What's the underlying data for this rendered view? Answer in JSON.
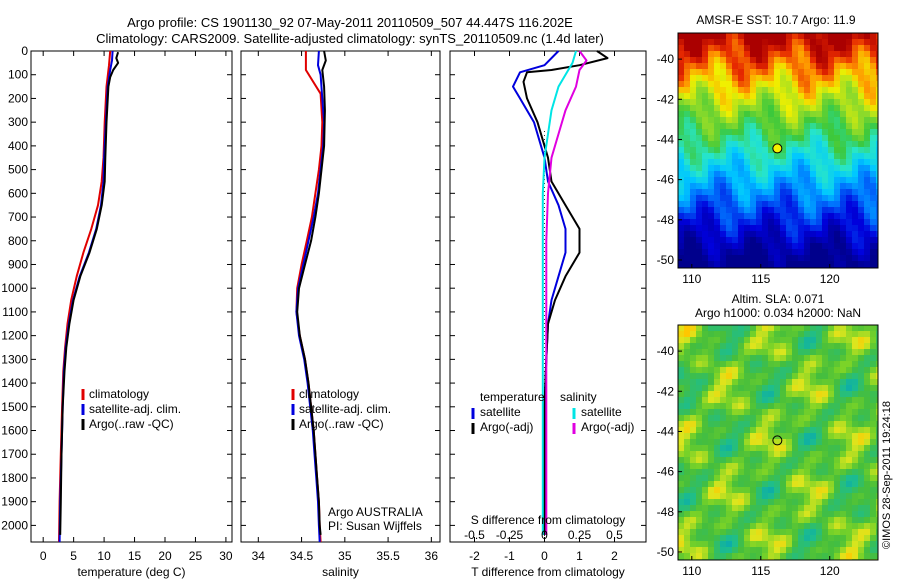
{
  "header": {
    "title_line1": "Argo profile: CS 1901130_92 07-May-2011 20110509_507 44.447S 116.202E",
    "title_line2": "Climatology: CARS2009. Satellite-adjusted climatology: synTS_20110509.nc (1.4d later)"
  },
  "colors": {
    "climatology": "#e00000",
    "satellite": "#0000dd",
    "argo": "#000000",
    "salinity_satellite": "#00e5e5",
    "salinity_argo": "#e000e0"
  },
  "chart_data": [
    {
      "type": "line",
      "panel": "temperature",
      "xlabel": "temperature (deg C)",
      "xlim": [
        -2,
        31
      ],
      "ylim": [
        2070,
        0
      ],
      "xticks": [
        0,
        5,
        10,
        15,
        20,
        25,
        30
      ],
      "xtick_labels": [
        "0",
        "5",
        "10",
        "15",
        "20",
        "25",
        "30"
      ],
      "yticks": [
        0,
        100,
        200,
        300,
        400,
        500,
        600,
        700,
        800,
        900,
        1000,
        1100,
        1200,
        1300,
        1400,
        1500,
        1600,
        1700,
        1800,
        1900,
        2000
      ],
      "ytick_labels": [
        "0",
        "100",
        "200",
        "300",
        "400",
        "500",
        "600",
        "700",
        "800",
        "900",
        "1000",
        "1100",
        "1200",
        "1300",
        "1400",
        "1500",
        "1600",
        "1700",
        "1800",
        "1900",
        "2000"
      ],
      "legend": [
        "climatology",
        "satellite-adj. clim.",
        "Argo(..raw -QC)"
      ],
      "series": [
        {
          "name": "climatology",
          "color": "#e00000",
          "points": [
            [
              11.0,
              0
            ],
            [
              10.8,
              60
            ],
            [
              10.4,
              150
            ],
            [
              10.1,
              300
            ],
            [
              9.9,
              450
            ],
            [
              9.6,
              550
            ],
            [
              9.0,
              650
            ],
            [
              7.9,
              750
            ],
            [
              6.6,
              850
            ],
            [
              5.5,
              950
            ],
            [
              4.6,
              1050
            ],
            [
              4.0,
              1150
            ],
            [
              3.6,
              1250
            ],
            [
              3.3,
              1350
            ],
            [
              3.1,
              1500
            ],
            [
              2.9,
              1700
            ],
            [
              2.7,
              1900
            ],
            [
              2.6,
              2070
            ]
          ]
        },
        {
          "name": "satellite-adj. clim.",
          "color": "#0000dd",
          "points": [
            [
              11.4,
              0
            ],
            [
              11.3,
              40
            ],
            [
              11.0,
              80
            ],
            [
              10.6,
              150
            ],
            [
              10.3,
              300
            ],
            [
              10.0,
              450
            ],
            [
              9.9,
              550
            ],
            [
              9.5,
              650
            ],
            [
              8.7,
              750
            ],
            [
              7.5,
              850
            ],
            [
              6.0,
              950
            ],
            [
              4.9,
              1050
            ],
            [
              4.2,
              1150
            ],
            [
              3.7,
              1250
            ],
            [
              3.4,
              1350
            ],
            [
              3.2,
              1500
            ],
            [
              3.0,
              1700
            ],
            [
              2.8,
              1900
            ],
            [
              2.7,
              2070
            ]
          ]
        },
        {
          "name": "Argo(..raw -QC)",
          "color": "#000000",
          "points": [
            [
              12.3,
              5
            ],
            [
              12.0,
              30
            ],
            [
              12.3,
              50
            ],
            [
              11.5,
              80
            ],
            [
              11.0,
              110
            ],
            [
              10.7,
              150
            ],
            [
              10.4,
              300
            ],
            [
              10.2,
              450
            ],
            [
              10.1,
              550
            ],
            [
              9.6,
              650
            ],
            [
              8.8,
              750
            ],
            [
              7.6,
              850
            ],
            [
              6.1,
              950
            ],
            [
              5.0,
              1050
            ],
            [
              4.3,
              1150
            ],
            [
              3.8,
              1250
            ],
            [
              3.5,
              1350
            ],
            [
              3.2,
              1500
            ],
            [
              3.0,
              1700
            ],
            [
              2.9,
              1900
            ],
            [
              2.8,
              2040
            ]
          ]
        }
      ]
    },
    {
      "type": "line",
      "panel": "salinity",
      "xlabel": "salinity",
      "xlim": [
        33.8,
        36.1
      ],
      "ylim": [
        2070,
        0
      ],
      "xticks": [
        34,
        34.5,
        35,
        35.5,
        36
      ],
      "xtick_labels": [
        "34",
        "34.5",
        "35",
        "35.5",
        "36"
      ],
      "legend": [
        "climatology",
        "satellite-adj. clim.",
        "Argo(..raw -QC)"
      ],
      "annotation": [
        "Argo AUSTRALIA",
        "PI: Susan Wijffels"
      ],
      "series": [
        {
          "name": "climatology",
          "color": "#e00000",
          "points": [
            [
              34.55,
              0
            ],
            [
              34.55,
              80
            ],
            [
              34.72,
              180
            ],
            [
              34.74,
              300
            ],
            [
              34.73,
              400
            ],
            [
              34.7,
              500
            ],
            [
              34.66,
              600
            ],
            [
              34.62,
              700
            ],
            [
              34.56,
              800
            ],
            [
              34.5,
              900
            ],
            [
              34.45,
              1000
            ],
            [
              34.44,
              1100
            ],
            [
              34.48,
              1200
            ],
            [
              34.54,
              1300
            ],
            [
              34.58,
              1400
            ],
            [
              34.61,
              1500
            ],
            [
              34.64,
              1600
            ],
            [
              34.66,
              1700
            ],
            [
              34.68,
              1800
            ],
            [
              34.7,
              1900
            ],
            [
              34.71,
              2000
            ],
            [
              34.72,
              2070
            ]
          ]
        },
        {
          "name": "satellite-adj. clim.",
          "color": "#0000dd",
          "points": [
            [
              34.7,
              0
            ],
            [
              34.69,
              60
            ],
            [
              34.72,
              100
            ],
            [
              34.74,
              200
            ],
            [
              34.76,
              300
            ],
            [
              34.75,
              400
            ],
            [
              34.72,
              500
            ],
            [
              34.69,
              600
            ],
            [
              34.64,
              700
            ],
            [
              34.58,
              800
            ],
            [
              34.52,
              900
            ],
            [
              34.46,
              1000
            ],
            [
              34.44,
              1100
            ],
            [
              34.47,
              1200
            ],
            [
              34.53,
              1300
            ],
            [
              34.57,
              1400
            ],
            [
              34.6,
              1500
            ],
            [
              34.63,
              1600
            ],
            [
              34.65,
              1700
            ],
            [
              34.67,
              1800
            ],
            [
              34.69,
              1900
            ],
            [
              34.7,
              2000
            ],
            [
              34.71,
              2070
            ]
          ]
        },
        {
          "name": "Argo(..raw -QC)",
          "color": "#000000",
          "points": [
            [
              34.76,
              0
            ],
            [
              34.78,
              40
            ],
            [
              34.74,
              80
            ],
            [
              34.76,
              150
            ],
            [
              34.77,
              250
            ],
            [
              34.76,
              400
            ],
            [
              34.73,
              500
            ],
            [
              34.7,
              600
            ],
            [
              34.66,
              700
            ],
            [
              34.61,
              800
            ],
            [
              34.54,
              900
            ],
            [
              34.47,
              1000
            ],
            [
              34.45,
              1100
            ],
            [
              34.48,
              1200
            ],
            [
              34.54,
              1300
            ],
            [
              34.58,
              1400
            ],
            [
              34.61,
              1500
            ],
            [
              34.64,
              1600
            ],
            [
              34.66,
              1700
            ],
            [
              34.68,
              1800
            ],
            [
              34.7,
              1900
            ],
            [
              34.71,
              2000
            ],
            [
              34.72,
              2040
            ]
          ]
        }
      ]
    },
    {
      "type": "line",
      "panel": "difference",
      "xlabel": "T difference from climatology",
      "xlabel_top": "S difference from climatology",
      "xlim": [
        -2.7,
        2.9
      ],
      "ylim": [
        2070,
        0
      ],
      "xticks": [
        -2,
        -1,
        0,
        1,
        2
      ],
      "xtick_labels": [
        "-2",
        "-1",
        "0",
        "1",
        "2"
      ],
      "s_tick_labels": [
        "-0.5",
        "-0.25",
        "0",
        "0.25",
        "0.5"
      ],
      "legend_temperature": [
        "temperature",
        "satellite",
        "Argo(-adj)"
      ],
      "legend_salinity": [
        "salinity",
        "satellite",
        "Argo(-adj)"
      ],
      "series": [
        {
          "name": "satellite",
          "color": "#0000dd",
          "points": [
            [
              0.4,
              0
            ],
            [
              0.0,
              60
            ],
            [
              -0.7,
              90
            ],
            [
              -0.9,
              150
            ],
            [
              -0.7,
              200
            ],
            [
              -0.3,
              300
            ],
            [
              0.0,
              450
            ],
            [
              0.1,
              550
            ],
            [
              0.4,
              650
            ],
            [
              0.6,
              750
            ],
            [
              0.6,
              850
            ],
            [
              0.4,
              950
            ],
            [
              0.2,
              1050
            ],
            [
              0.1,
              1150
            ],
            [
              0.05,
              1300
            ],
            [
              0.0,
              1500
            ],
            [
              0.0,
              1700
            ],
            [
              0.0,
              1900
            ],
            [
              0.0,
              2040
            ]
          ]
        },
        {
          "name": "Argo(-adj)",
          "color": "#000000",
          "points": [
            [
              1.5,
              0
            ],
            [
              1.8,
              30
            ],
            [
              1.0,
              60
            ],
            [
              0.2,
              80
            ],
            [
              -0.5,
              90
            ],
            [
              -0.6,
              130
            ],
            [
              -0.5,
              200
            ],
            [
              -0.2,
              300
            ],
            [
              0.1,
              450
            ],
            [
              0.2,
              550
            ],
            [
              0.6,
              650
            ],
            [
              1.0,
              750
            ],
            [
              1.0,
              850
            ],
            [
              0.6,
              950
            ],
            [
              0.3,
              1050
            ],
            [
              0.1,
              1150
            ],
            [
              0.05,
              1300
            ],
            [
              0.0,
              1500
            ],
            [
              0.0,
              1700
            ],
            [
              0.0,
              1900
            ],
            [
              0.0,
              2040
            ]
          ]
        },
        {
          "name": "salinity satellite",
          "color": "#00e5e5",
          "points": [
            [
              0.9,
              0
            ],
            [
              0.8,
              50
            ],
            [
              0.6,
              100
            ],
            [
              0.4,
              150
            ],
            [
              0.2,
              250
            ],
            [
              0.1,
              350
            ],
            [
              0.0,
              450
            ],
            [
              -0.05,
              600
            ],
            [
              -0.05,
              800
            ],
            [
              -0.05,
              1000
            ],
            [
              -0.05,
              1200
            ],
            [
              -0.05,
              1400
            ],
            [
              -0.05,
              1600
            ],
            [
              -0.05,
              1800
            ],
            [
              -0.05,
              2040
            ]
          ]
        },
        {
          "name": "salinity Argo(-adj)",
          "color": "#e000e0",
          "points": [
            [
              1.0,
              0
            ],
            [
              1.2,
              40
            ],
            [
              1.0,
              80
            ],
            [
              0.9,
              150
            ],
            [
              0.6,
              250
            ],
            [
              0.4,
              350
            ],
            [
              0.2,
              450
            ],
            [
              0.1,
              600
            ],
            [
              0.05,
              800
            ],
            [
              0.05,
              1000
            ],
            [
              0.05,
              1200
            ],
            [
              0.05,
              1400
            ],
            [
              0.05,
              1600
            ],
            [
              0.05,
              1800
            ],
            [
              0.05,
              2040
            ]
          ]
        }
      ]
    },
    {
      "type": "heatmap",
      "panel": "sst-map",
      "title": "AMSR-E SST: 10.7 Argo: 11.9",
      "xlim": [
        109,
        123.5
      ],
      "ylim": [
        -50.4,
        -38.7
      ],
      "xticks": [
        110,
        115,
        120
      ],
      "xtick_labels": [
        "110",
        "115",
        "120"
      ],
      "yticks": [
        -40,
        -42,
        -44,
        -46,
        -48,
        -50
      ],
      "ytick_labels": [
        "-40",
        "-42",
        "-44",
        "-46",
        "-48",
        "-50"
      ],
      "marker": {
        "lon": 116.202,
        "lat": -44.447
      }
    },
    {
      "type": "heatmap",
      "panel": "sla-map",
      "title": "Altim. SLA: 0.071",
      "subtitle": "Argo h1000: 0.034 h2000: NaN",
      "xlim": [
        109,
        123.5
      ],
      "ylim": [
        -50.4,
        -38.7
      ],
      "xticks": [
        110,
        115,
        120
      ],
      "xtick_labels": [
        "110",
        "115",
        "120"
      ],
      "yticks": [
        -40,
        -42,
        -44,
        -46,
        -48,
        -50
      ],
      "ytick_labels": [
        "-40",
        "-42",
        "-44",
        "-46",
        "-48",
        "-50"
      ],
      "marker": {
        "lon": 116.202,
        "lat": -44.447
      }
    }
  ],
  "footer": {
    "credit": "©IMOS 28-Sep-2011 19:24:18"
  }
}
